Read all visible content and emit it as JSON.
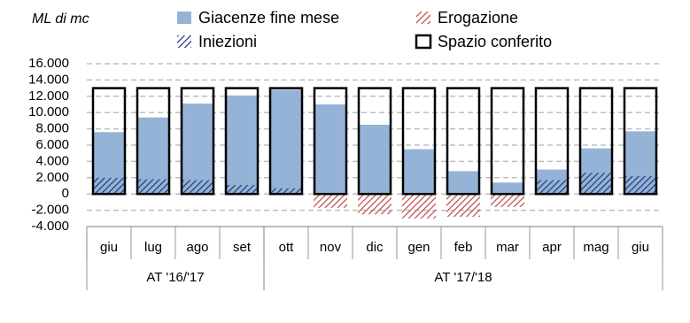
{
  "chart_data": {
    "type": "bar",
    "y_label": "ML di mc",
    "groups": [
      {
        "label": "AT '16/'17",
        "categories": [
          "giu",
          "lug",
          "ago",
          "set"
        ]
      },
      {
        "label": "AT '17/'18",
        "categories": [
          "ott",
          "nov",
          "dic",
          "gen",
          "feb",
          "mar",
          "apr",
          "mag",
          "giu"
        ]
      }
    ],
    "series": [
      {
        "name": "Giacenze fine mese",
        "color": "#95b3d7",
        "fill": "solid",
        "values": [
          7600,
          9400,
          11100,
          12100,
          12800,
          11000,
          8500,
          5500,
          2800,
          1400,
          3000,
          5600,
          7700
        ]
      },
      {
        "name": "Erogazione",
        "color": "#c0504d",
        "fill": "hatch",
        "values": [
          null,
          null,
          null,
          null,
          null,
          -1700,
          -2500,
          -3000,
          -2800,
          -1600,
          null,
          null,
          null
        ]
      },
      {
        "name": "Iniezioni",
        "color": "#1f3d7a",
        "fill": "hatch",
        "values": [
          2000,
          1800,
          1700,
          1100,
          700,
          null,
          null,
          null,
          null,
          null,
          1700,
          2600,
          2200
        ]
      },
      {
        "name": "Spazio conferito",
        "color": "#000000",
        "fill": "outline",
        "values": [
          13000,
          13000,
          13000,
          13000,
          13000,
          13000,
          13000,
          13000,
          13000,
          13000,
          13000,
          13000,
          13000
        ]
      }
    ],
    "ylim": [
      -4000,
      16000
    ],
    "yticks": [
      {
        "value": -4000,
        "label": "-4.000"
      },
      {
        "value": -2000,
        "label": "-2.000"
      },
      0,
      {
        "value": 2000,
        "label": "2.000"
      },
      {
        "value": 4000,
        "label": "4.000"
      },
      {
        "value": 6000,
        "label": "6.000"
      },
      {
        "value": 8000,
        "label": "8.000"
      },
      {
        "value": 10000,
        "label": "10.000"
      },
      {
        "value": 12000,
        "label": "12.000"
      },
      {
        "value": 14000,
        "label": "14.000"
      },
      {
        "value": 16000,
        "label": "16.000"
      }
    ],
    "grid": true
  }
}
